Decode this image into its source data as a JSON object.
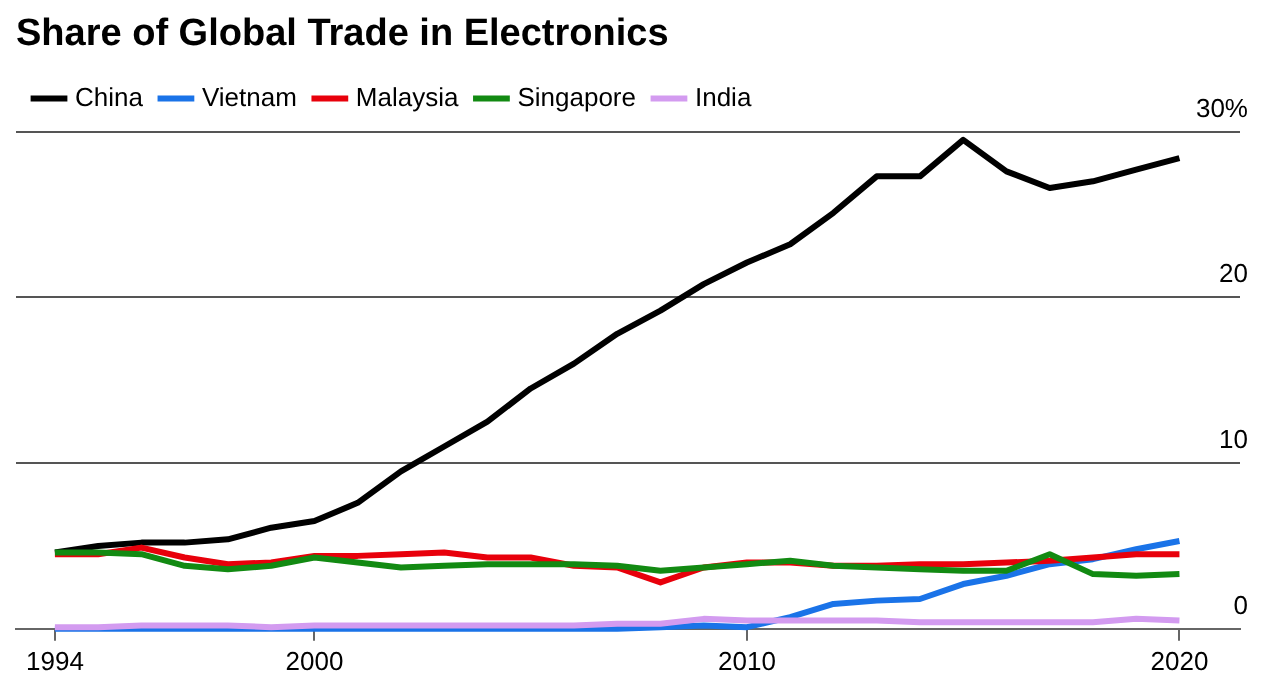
{
  "chart_data": {
    "type": "line",
    "title": "Share of Global Trade in Electronics",
    "x": [
      1994,
      1995,
      1996,
      1997,
      1998,
      1999,
      2000,
      2001,
      2002,
      2003,
      2004,
      2005,
      2006,
      2007,
      2008,
      2009,
      2010,
      2011,
      2012,
      2013,
      2014,
      2015,
      2016,
      2017,
      2018,
      2019,
      2020
    ],
    "series": [
      {
        "name": "China",
        "color": "#000000",
        "values": [
          4.6,
          5.0,
          5.2,
          5.2,
          5.4,
          6.1,
          6.5,
          7.6,
          9.5,
          11.0,
          12.5,
          14.5,
          16.0,
          17.8,
          19.2,
          20.8,
          22.1,
          23.2,
          25.1,
          27.3,
          27.3,
          29.5,
          27.6,
          26.6,
          27.0,
          27.7,
          28.4
        ]
      },
      {
        "name": "Vietnam",
        "color": "#1a73e8",
        "values": [
          0,
          0,
          0,
          0,
          0,
          0,
          0,
          0,
          0,
          0,
          0,
          0,
          0,
          0,
          0.1,
          0.2,
          0.1,
          0.7,
          1.5,
          1.7,
          1.8,
          2.7,
          3.2,
          3.9,
          4.2,
          4.8,
          5.3
        ]
      },
      {
        "name": "Malaysia",
        "color": "#e8000b",
        "values": [
          4.5,
          4.5,
          4.9,
          4.3,
          3.9,
          4.0,
          4.4,
          4.4,
          4.5,
          4.6,
          4.3,
          4.3,
          3.8,
          3.7,
          2.8,
          3.7,
          4.0,
          4.0,
          3.8,
          3.8,
          3.9,
          3.9,
          4.0,
          4.1,
          4.3,
          4.5,
          4.5
        ]
      },
      {
        "name": "Singapore",
        "color": "#128a12",
        "values": [
          4.6,
          4.6,
          4.5,
          3.8,
          3.6,
          3.8,
          4.3,
          4.0,
          3.7,
          3.8,
          3.9,
          3.9,
          3.9,
          3.8,
          3.5,
          3.7,
          3.9,
          4.1,
          3.8,
          3.7,
          3.6,
          3.5,
          3.5,
          4.5,
          3.3,
          3.2,
          3.3
        ]
      },
      {
        "name": "India",
        "color": "#d39bf0",
        "values": [
          0.1,
          0.1,
          0.2,
          0.2,
          0.2,
          0.1,
          0.2,
          0.2,
          0.2,
          0.2,
          0.2,
          0.2,
          0.2,
          0.3,
          0.3,
          0.6,
          0.5,
          0.5,
          0.5,
          0.5,
          0.4,
          0.4,
          0.4,
          0.4,
          0.4,
          0.6,
          0.5
        ]
      }
    ],
    "xlim": [
      1993.1,
      2021.4
    ],
    "xticks": [
      1994,
      2000,
      2010,
      2020
    ],
    "ylim": [
      0,
      30
    ],
    "yticks": [
      0,
      10,
      20,
      {
        "value": 30,
        "label": "30%"
      }
    ],
    "grid": "y",
    "legend": "top left",
    "marker": "none",
    "line_style": "solid"
  }
}
